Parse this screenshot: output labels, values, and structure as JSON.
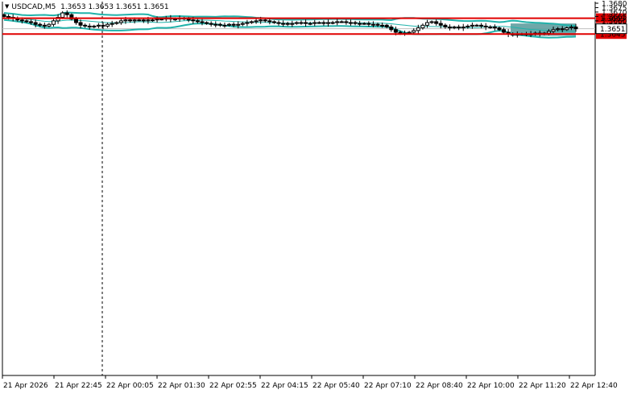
{
  "header": {
    "symbol": "USDCAD,M5",
    "ohlc": "1.3653 1.3653 1.3651 1.3651"
  },
  "colors": {
    "background": "#ffffff",
    "candle": "#000000",
    "bollinger": "#20b2aa",
    "level_line": "#e00000",
    "level_label_bg": "#e00000",
    "zone": "#5f9ea0",
    "bid_line": "#c0c0c0"
  },
  "price_axis": {
    "min": 1.364,
    "max": 1.368,
    "ticks": [
      "1.3680",
      "1.3675",
      "1.3670",
      "1.3665",
      "1.3660",
      "1.3655",
      "1.3650"
    ]
  },
  "time_axis": {
    "labels": [
      "21 Apr 2026",
      "21 Apr 22:45",
      "22 Apr 00:05",
      "22 Apr 01:30",
      "22 Apr 02:55",
      "22 Apr 04:15",
      "22 Apr 05:40",
      "22 Apr 07:10",
      "22 Apr 08:40",
      "22 Apr 10:00",
      "22 Apr 11:20",
      "22 Apr 12:40"
    ]
  },
  "levels": [
    {
      "price": 1.3663,
      "label": "1.3663"
    },
    {
      "price": 1.3645,
      "label": "1.3645"
    }
  ],
  "current_price": {
    "price": 1.3651,
    "label": "1.3651"
  },
  "zone": {
    "price_top": 1.3657,
    "price_bottom": 1.3643
  },
  "chart_data": {
    "type": "candlestick",
    "price_range": [
      1.364,
      1.368
    ],
    "closes": [
      1.3665,
      1.3664,
      1.3663,
      1.3661,
      1.366,
      1.3659,
      1.3658,
      1.3656,
      1.3655,
      1.3654,
      1.3656,
      1.366,
      1.3664,
      1.3669,
      1.3667,
      1.3662,
      1.3658,
      1.3655,
      1.3654,
      1.3653,
      1.3654,
      1.3655,
      1.3654,
      1.3656,
      1.3657,
      1.3658,
      1.366,
      1.3661,
      1.366,
      1.3661,
      1.3661,
      1.366,
      1.3661,
      1.3661,
      1.3662,
      1.3662,
      1.3663,
      1.3662,
      1.3662,
      1.3663,
      1.3662,
      1.3661,
      1.366,
      1.3659,
      1.3658,
      1.3657,
      1.3656,
      1.3656,
      1.3655,
      1.3655,
      1.3656,
      1.3655,
      1.3656,
      1.3657,
      1.3658,
      1.3659,
      1.366,
      1.3661,
      1.366,
      1.3659,
      1.3658,
      1.3657,
      1.3657,
      1.3656,
      1.3657,
      1.3658,
      1.3658,
      1.3657,
      1.3657,
      1.3658,
      1.3658,
      1.3657,
      1.3658,
      1.3658,
      1.3659,
      1.3659,
      1.3658,
      1.3658,
      1.3657,
      1.3657,
      1.3657,
      1.3656,
      1.3656,
      1.3655,
      1.3655,
      1.3653,
      1.365,
      1.3647,
      1.3646,
      1.3646,
      1.3647,
      1.3649,
      1.3652,
      1.3655,
      1.3658,
      1.3659,
      1.3657,
      1.3655,
      1.3653,
      1.3652,
      1.3653,
      1.3652,
      1.3653,
      1.3654,
      1.3655,
      1.3655,
      1.3654,
      1.3653,
      1.3653,
      1.3652,
      1.365,
      1.3647,
      1.3645,
      1.3644,
      1.3645,
      1.3645,
      1.3645,
      1.3645,
      1.3646,
      1.3645,
      1.3646,
      1.3648,
      1.365,
      1.3651,
      1.365,
      1.3652,
      1.3653,
      1.3651
    ]
  }
}
